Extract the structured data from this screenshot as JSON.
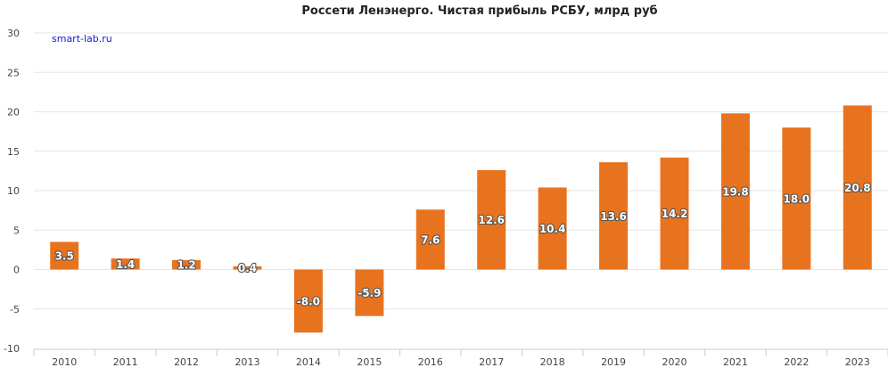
{
  "chart_data": {
    "type": "bar",
    "title": "Россети Ленэнерго. Чистая прибыль РСБУ, млрд руб",
    "watermark": "smart-lab.ru",
    "xlabel": "",
    "ylabel": "",
    "categories": [
      "2010",
      "2011",
      "2012",
      "2013",
      "2014",
      "2015",
      "2016",
      "2017",
      "2018",
      "2019",
      "2020",
      "2021",
      "2022",
      "2023"
    ],
    "values": [
      3.5,
      1.4,
      1.2,
      0.4,
      -8.0,
      -5.9,
      7.6,
      12.6,
      10.4,
      13.6,
      14.2,
      19.8,
      18.0,
      20.8
    ],
    "data_labels": [
      "3.5",
      "1.4",
      "1.2",
      "0.4",
      "-8.0",
      "-5.9",
      "7.6",
      "12.6",
      "10.4",
      "13.6",
      "14.2",
      "19.8",
      "18.0",
      "20.8"
    ],
    "ylim": [
      -10,
      30
    ],
    "yticks": [
      -10,
      -5,
      0,
      5,
      10,
      15,
      20,
      25,
      30
    ],
    "ytick_labels": [
      "-10",
      "-5",
      "0",
      "5",
      "10",
      "15",
      "20",
      "25",
      "30"
    ],
    "grid": true,
    "legend": "none",
    "colors": {
      "bar": "#e8731f",
      "grid": "#e6e6e6",
      "axis": "#cccccc",
      "watermark": "#1a1acc"
    }
  }
}
